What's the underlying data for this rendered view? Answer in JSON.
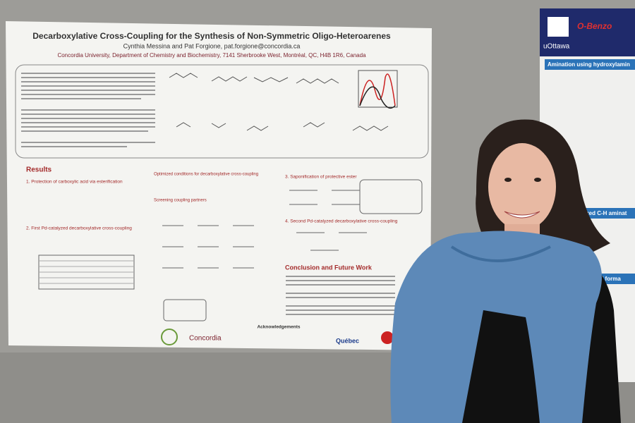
{
  "poster": {
    "title": "Decarboxylative Cross-Coupling for the Synthesis of Non-Symmetric Oligo-Heteroarenes",
    "authors": "Cynthia Messina and Pat Forgione, pat.forgione@concordia.ca",
    "affiliation": "Concordia University, Department of Chemistry and Biochemistry, 7141 Sherbrooke West, Montréal, QC, H4B 1R6, Canada",
    "results": "Results",
    "step1": "1. Protection of carboxylic acid via esterification",
    "step2": "2. First Pd-catalyzed decarboxylative cross-coupling",
    "optimized": "Optimized conditions for decarboxylative cross-coupling",
    "screening": "Screening coupling partners",
    "step3": "3. Saponification of protective ester",
    "step4": "4. Second Pd-catalyzed decarboxylative cross-coupling",
    "conclusion": "Conclusion and Future Work",
    "acknowledgements": "Acknowledgements",
    "logo_concordia": "Concordia",
    "logo_quebec": "Québec"
  },
  "side_poster": {
    "title": "O-Benzo",
    "logo": "uOttawa",
    "heading1": "Amination using hydroxylamin",
    "heading2": "lyzed C-H aminat",
    "heading3": "enoid forma"
  }
}
